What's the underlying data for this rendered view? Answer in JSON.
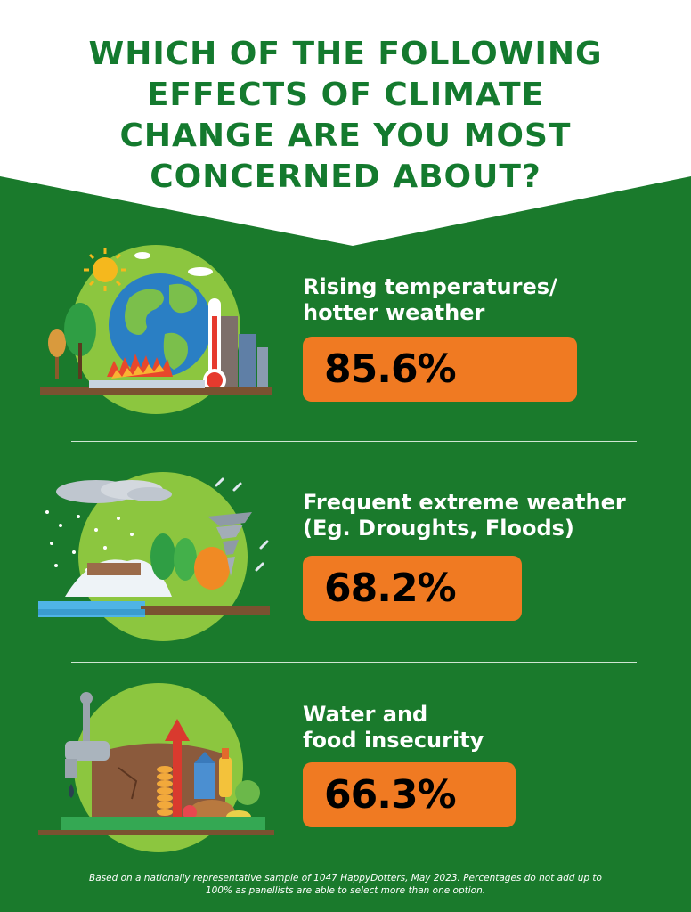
{
  "title_lines": [
    "WHICH OF THE FOLLOWING",
    "EFFECTS OF CLIMATE",
    "CHANGE ARE YOU MOST",
    "CONCERNED ABOUT?"
  ],
  "chart_data": {
    "type": "bar",
    "title": "WHICH OF THE FOLLOWING EFFECTS OF CLIMATE CHANGE ARE YOU MOST CONCERNED ABOUT?",
    "categories": [
      "Rising temperatures/ hotter weather",
      "Frequent extreme weather (Eg. Droughts, Floods)",
      "Water and food insecurity"
    ],
    "values": [
      85.6,
      68.2,
      66.3
    ],
    "unit": "%",
    "xlim": [
      0,
      100
    ],
    "xlabel": "",
    "ylabel": "",
    "orientation": "horizontal",
    "grid": false,
    "legend": "none",
    "bar_color": "#f07a22"
  },
  "items": [
    {
      "label_lines": [
        "Rising temperatures/",
        "hotter weather"
      ],
      "value_text": "85.6%",
      "icon": "globe-thermometer-icon"
    },
    {
      "label_lines": [
        "Frequent extreme weather",
        "(Eg. Droughts, Floods)"
      ],
      "value_text": "68.2%",
      "icon": "tornado-storm-icon"
    },
    {
      "label_lines": [
        "Water and",
        "food insecurity"
      ],
      "value_text": "66.3%",
      "icon": "water-food-icon"
    }
  ],
  "footnote_lines": [
    "Based on a nationally representative sample of 1047 HappyDotters, May 2023. Percentages do not add up to",
    "100% as panellists are able to select more than one option."
  ],
  "colors": {
    "background_green": "#1a7a2c",
    "title_green": "#147a2e",
    "header_white": "#ffffff",
    "bar_orange": "#f07a22",
    "circle_light_green": "#8cc63f"
  }
}
